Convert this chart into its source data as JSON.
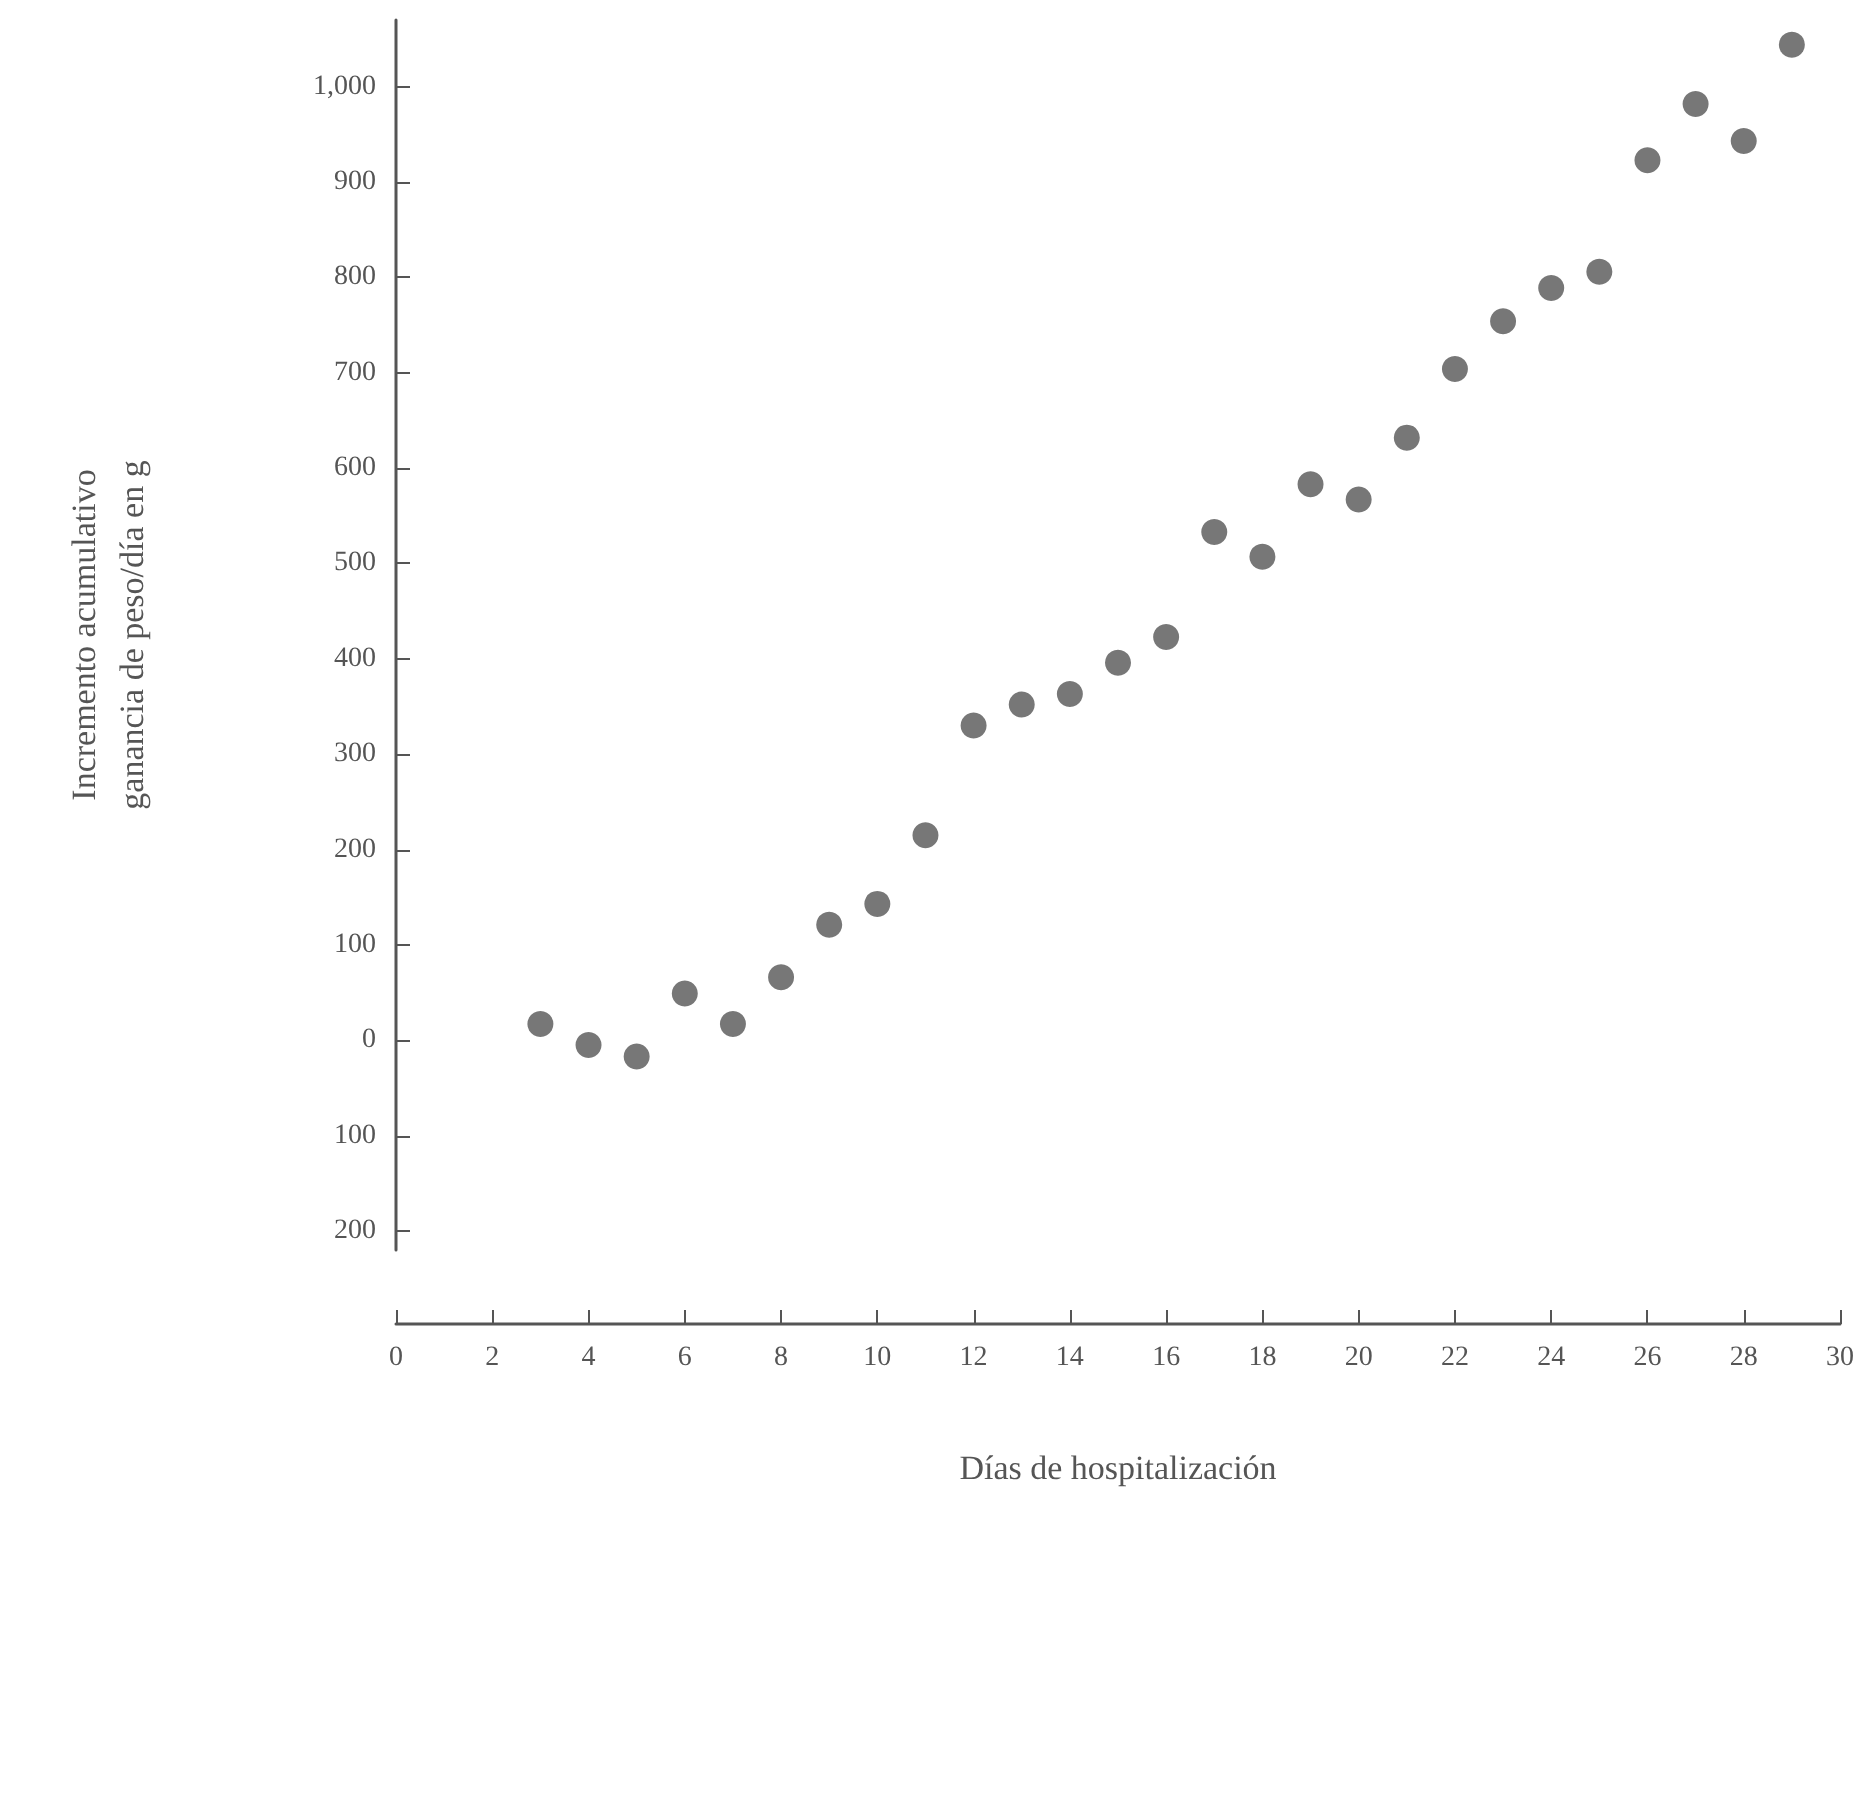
{
  "chart_data": {
    "type": "scatter",
    "xlabel": "Días de hospitalización",
    "ylabel": "Incremento acumulativo\nganancia de peso/día en g",
    "x": [
      3,
      4,
      5,
      6,
      7,
      8,
      9,
      10,
      11,
      12,
      13,
      14,
      15,
      16,
      17,
      18,
      19,
      20,
      21,
      22,
      23,
      24,
      25,
      26,
      27,
      28,
      29
    ],
    "series": [
      {
        "color": "#555555",
        "values": [
          17,
          -5,
          -17,
          49,
          17,
          66,
          121,
          143,
          215,
          330,
          352,
          363,
          396,
          423,
          533,
          507,
          583,
          567,
          632,
          704,
          754,
          789,
          806,
          923,
          982,
          943,
          1044
        ]
      }
    ],
    "xlim": [
      0,
      30
    ],
    "xticks": [
      0,
      2,
      4,
      6,
      8,
      10,
      12,
      14,
      16,
      18,
      20,
      22,
      24,
      26,
      28,
      30
    ],
    "ylim": [
      -220,
      1070
    ],
    "yticks": [
      {
        "value": -200,
        "label": "200"
      },
      {
        "value": -100,
        "label": "100"
      },
      0,
      100,
      200,
      300,
      400,
      500,
      600,
      700,
      800,
      900,
      {
        "value": 1000,
        "label": "1,000"
      }
    ],
    "grid": false,
    "marker": "circle",
    "legend": false
  }
}
